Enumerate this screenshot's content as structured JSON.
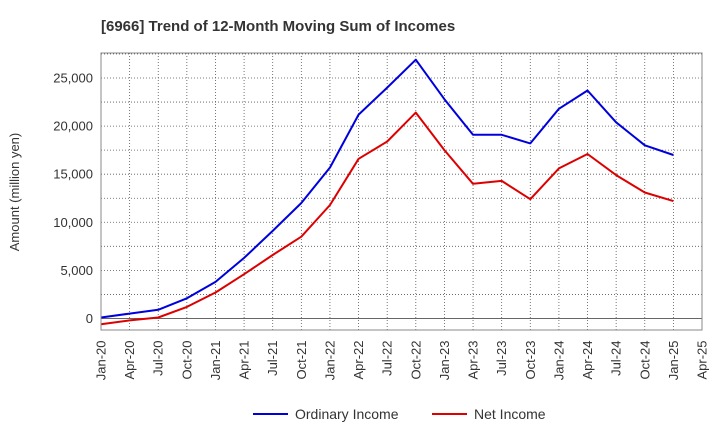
{
  "chart_data": {
    "type": "line",
    "title": "[6966]  Trend of 12-Month Moving Sum of Incomes",
    "xlabel": "",
    "ylabel": "Amount (million yen)",
    "ylim": [
      -1200,
      27600
    ],
    "yticks": [
      0,
      5000,
      10000,
      15000,
      20000,
      25000
    ],
    "ytick_labels": [
      "0",
      "5,000",
      "10,000",
      "15,000",
      "20,000",
      "25,000"
    ],
    "grid": true,
    "legend_position": "bottom",
    "categories": [
      "Jan-20",
      "Apr-20",
      "Jul-20",
      "Oct-20",
      "Jan-21",
      "Apr-21",
      "Jul-21",
      "Oct-21",
      "Jan-22",
      "Apr-22",
      "Jul-22",
      "Oct-22",
      "Jan-23",
      "Apr-23",
      "Jul-23",
      "Oct-23",
      "Jan-24",
      "Apr-24",
      "Jul-24",
      "Oct-24",
      "Jan-25",
      "Apr-25"
    ],
    "series": [
      {
        "name": "Ordinary Income",
        "color": "#0000dd",
        "values": [
          100,
          500,
          900,
          2100,
          3800,
          6300,
          9100,
          12000,
          15700,
          21200,
          24000,
          26900,
          22800,
          19100,
          19100,
          18200,
          21800,
          23700,
          20400,
          18000,
          17000,
          null
        ]
      },
      {
        "name": "Net Income",
        "color": "#dd0000",
        "values": [
          -600,
          -200,
          100,
          1200,
          2700,
          4600,
          6600,
          8500,
          11800,
          16600,
          18400,
          21400,
          17500,
          14000,
          14300,
          12400,
          15600,
          17100,
          14900,
          13100,
          12200,
          null
        ]
      }
    ]
  }
}
